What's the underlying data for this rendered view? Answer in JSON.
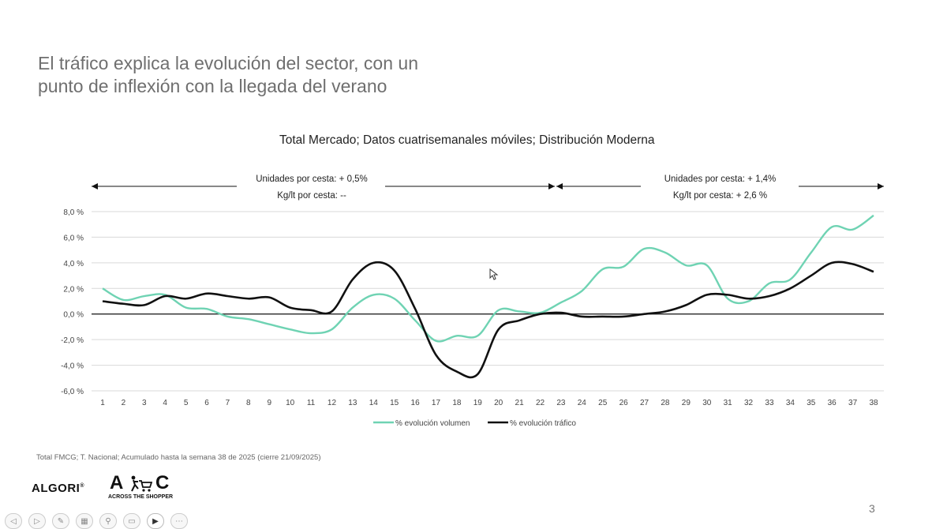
{
  "slide": {
    "title_line1": "El tráfico explica la evolución del sector, con un",
    "title_line2": "punto de inflexión con la llegada del verano",
    "footnote": "Total FMCG; T. Nacional; Acumulado hasta la semana 38 de 2025 (cierre 21/09/2025)",
    "page_number": "3",
    "logo_algori": "ALGORI",
    "logo_ats_left": "A",
    "logo_ats_right": "C",
    "logo_ats_sub": "ACROSS THE SHOPPER"
  },
  "annotations": {
    "left_line1": "Unidades por cesta: + 0,5%",
    "left_line2": "Kg/lt por cesta: --",
    "right_line1": "Unidades por cesta: + 1,4%",
    "right_line2": "Kg/lt por cesta: + 2,6 %"
  },
  "toolbar": {
    "icons": [
      "prev-icon",
      "play-icon",
      "pen-icon",
      "grid-icon",
      "zoom-icon",
      "subtitle-icon",
      "camera-icon",
      "more-icon"
    ]
  },
  "chart_data": {
    "type": "line",
    "title": "Total Mercado; Datos cuatrisemanales móviles; Distribución Moderna",
    "x": [
      1,
      2,
      3,
      4,
      5,
      6,
      7,
      8,
      9,
      10,
      11,
      12,
      13,
      14,
      15,
      16,
      17,
      18,
      19,
      20,
      21,
      22,
      23,
      24,
      25,
      26,
      27,
      28,
      29,
      30,
      31,
      32,
      33,
      34,
      35,
      36,
      37,
      38
    ],
    "ylim": [
      -6,
      8
    ],
    "yticks": [
      "8,0 %",
      "6,0 %",
      "4,0 %",
      "2,0 %",
      "0,0 %",
      "-2,0 %",
      "-4,0 %",
      "-6,0 %"
    ],
    "ytick_values": [
      8,
      6,
      4,
      2,
      0,
      -2,
      -4,
      -6
    ],
    "grid": true,
    "legend_position": "bottom",
    "series": [
      {
        "name": "% evolución volumen",
        "color": "#6fd3b3",
        "values": [
          2.0,
          1.1,
          1.4,
          1.5,
          0.5,
          0.4,
          -0.2,
          -0.4,
          -0.8,
          -1.2,
          -1.5,
          -1.2,
          0.5,
          1.5,
          1.2,
          -0.5,
          -2.1,
          -1.7,
          -1.7,
          0.3,
          0.2,
          0.1,
          0.9,
          1.8,
          3.5,
          3.7,
          5.1,
          4.8,
          3.8,
          3.8,
          1.2,
          1.0,
          2.4,
          2.7,
          4.8,
          6.8,
          6.6,
          7.7
        ]
      },
      {
        "name": "% evolución tráfico",
        "color": "#111111",
        "values": [
          1.0,
          0.8,
          0.7,
          1.4,
          1.2,
          1.6,
          1.4,
          1.2,
          1.3,
          0.5,
          0.3,
          0.2,
          2.7,
          4.0,
          3.4,
          0.4,
          -3.2,
          -4.5,
          -4.7,
          -1.2,
          -0.5,
          0.0,
          0.1,
          -0.2,
          -0.2,
          -0.2,
          0.0,
          0.2,
          0.7,
          1.5,
          1.5,
          1.2,
          1.4,
          2.0,
          3.0,
          4.0,
          3.9,
          3.3
        ]
      }
    ]
  }
}
